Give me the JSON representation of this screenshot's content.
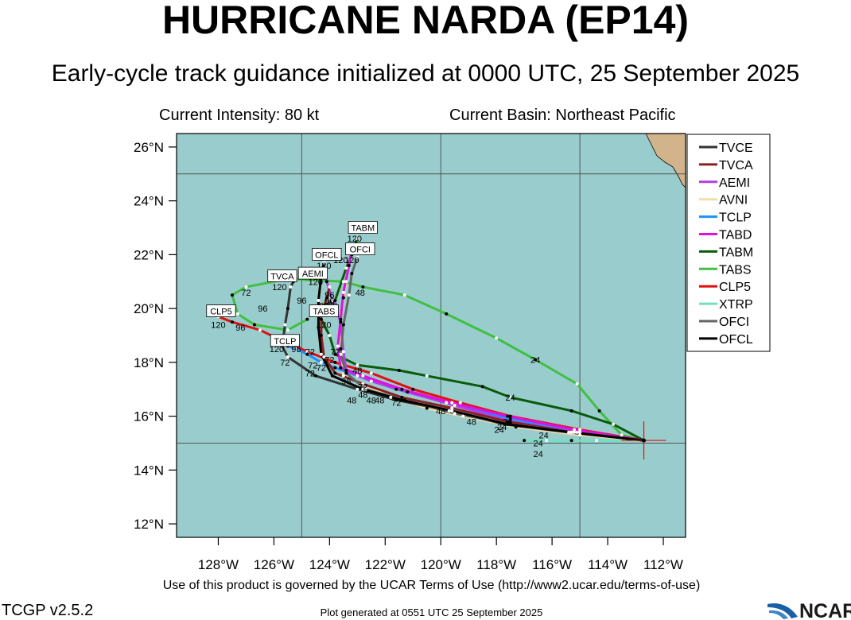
{
  "header": {
    "title": "HURRICANE NARDA (EP14)",
    "subtitle": "Early-cycle track guidance initialized at 0000 UTC, 25 September 2025",
    "current_intensity": "Current Intensity: 80 kt",
    "current_basin": "Current Basin: Northeast Pacific"
  },
  "footer": {
    "terms": "Use of this product is governed by the UCAR Terms of Use (http://www2.ucar.edu/terms-of-use)",
    "version": "TCGP v2.5.2",
    "generated": "Plot generated at 0551 UTC   25 September 2025",
    "logo_text": "NCAR"
  },
  "map": {
    "lon_range": [
      -129.5,
      -111.2
    ],
    "lat_range": [
      11.5,
      26.5
    ],
    "lon_ticks": [
      -128,
      -126,
      -124,
      -122,
      -120,
      -118,
      -116,
      -114,
      -112
    ],
    "lon_tick_labels": [
      "128°W",
      "126°W",
      "124°W",
      "122°W",
      "120°W",
      "118°W",
      "116°W",
      "114°W",
      "112°W"
    ],
    "lat_ticks": [
      12,
      14,
      16,
      18,
      20,
      22,
      24,
      26
    ],
    "lat_tick_labels": [
      "12°N",
      "14°N",
      "16°N",
      "18°N",
      "20°N",
      "22°N",
      "24°N",
      "26°N"
    ],
    "grid_lons": [
      -125,
      -120,
      -115
    ],
    "grid_lats": [
      15,
      25
    ],
    "ocean_color": "#99cccc",
    "land_color": "#d2b48c",
    "storm_position": [
      -112.7,
      15.1
    ]
  },
  "legend": [
    {
      "name": "TVCE",
      "color": "#333333"
    },
    {
      "name": "TVCA",
      "color": "#8b2020"
    },
    {
      "name": "AEMI",
      "color": "#b040e0"
    },
    {
      "name": "AVNI",
      "color": "#f5dcaa"
    },
    {
      "name": "TCLP",
      "color": "#1e90ff"
    },
    {
      "name": "TABD",
      "color": "#e010e0"
    },
    {
      "name": "TABM",
      "color": "#0a5a0a"
    },
    {
      "name": "TABS",
      "color": "#40c040"
    },
    {
      "name": "CLP5",
      "color": "#e01010"
    },
    {
      "name": "XTRP",
      "color": "#70e0c0"
    },
    {
      "name": "OFCI",
      "color": "#666666"
    },
    {
      "name": "OFCL",
      "color": "#000000"
    }
  ],
  "tracks": [
    {
      "name": "TABS",
      "color": "#40c040",
      "points": [
        [
          -112.7,
          15.1
        ],
        [
          -113.5,
          15.3
        ],
        [
          -114.3,
          16.2
        ],
        [
          -115.1,
          17.2
        ],
        [
          -116.6,
          18.1
        ],
        [
          -118.0,
          18.9
        ],
        [
          -119.8,
          19.8
        ],
        [
          -121.3,
          20.5
        ],
        [
          -122.8,
          20.8
        ],
        [
          -123.5,
          21.0
        ],
        [
          -125.5,
          21.1
        ],
        [
          -127.0,
          20.8
        ],
        [
          -127.5,
          20.5
        ],
        [
          -127.3,
          19.8
        ],
        [
          -126.7,
          19.4
        ],
        [
          -125.5,
          19.2
        ],
        [
          -124.8,
          19.6
        ]
      ]
    },
    {
      "name": "TABM",
      "color": "#0a5a0a",
      "points": [
        [
          -112.7,
          15.1
        ],
        [
          -113.8,
          15.7
        ],
        [
          -115.3,
          16.2
        ],
        [
          -117.5,
          16.7
        ],
        [
          -118.5,
          17.1
        ],
        [
          -120.5,
          17.5
        ],
        [
          -121.5,
          17.7
        ],
        [
          -123.0,
          17.9
        ],
        [
          -123.8,
          18.3
        ],
        [
          -124.0,
          19.0
        ],
        [
          -124.3,
          19.6
        ],
        [
          -124.5,
          20.0
        ],
        [
          -123.8,
          20.3
        ],
        [
          -123.4,
          21.5
        ],
        [
          -123.2,
          22.0
        ],
        [
          -123.0,
          22.6
        ]
      ]
    },
    {
      "name": "CLP5",
      "color": "#e01010",
      "points": [
        [
          -112.7,
          15.1
        ],
        [
          -115.0,
          15.5
        ],
        [
          -117.5,
          16.0
        ],
        [
          -119.3,
          16.5
        ],
        [
          -121.0,
          17.0
        ],
        [
          -122.5,
          17.6
        ],
        [
          -123.8,
          18.0
        ],
        [
          -124.8,
          18.4
        ],
        [
          -125.9,
          18.9
        ],
        [
          -126.5,
          19.2
        ],
        [
          -127.5,
          19.5
        ],
        [
          -128.0,
          19.7
        ]
      ]
    },
    {
      "name": "XTRP",
      "color": "#70e0c0",
      "points": [
        [
          -112.7,
          15.1
        ],
        [
          -114.4,
          15.1
        ],
        [
          -115.3,
          15.1
        ],
        [
          -116.2,
          15.1
        ],
        [
          -117.0,
          15.1
        ]
      ]
    },
    {
      "name": "AVNI",
      "color": "#f5dcaa",
      "points": [
        [
          -112.7,
          15.1
        ],
        [
          -115.0,
          15.3
        ],
        [
          -117.3,
          15.6
        ],
        [
          -119.2,
          16.0
        ],
        [
          -120.5,
          16.3
        ],
        [
          -121.8,
          16.7
        ],
        [
          -122.8,
          17.2
        ],
        [
          -123.5,
          17.5
        ],
        [
          -123.6,
          18.5
        ],
        [
          -123.6,
          19.6
        ],
        [
          -123.5,
          20.4
        ],
        [
          -123.4,
          21.0
        ]
      ]
    },
    {
      "name": "TCLP",
      "color": "#1e90ff",
      "points": [
        [
          -112.7,
          15.1
        ],
        [
          -115.0,
          15.4
        ],
        [
          -117.5,
          15.9
        ],
        [
          -119.8,
          16.5
        ],
        [
          -121.6,
          17.0
        ],
        [
          -123.0,
          17.5
        ],
        [
          -123.8,
          17.8
        ],
        [
          -124.3,
          18.0
        ],
        [
          -124.8,
          18.3
        ],
        [
          -125.2,
          18.5
        ],
        [
          -125.5,
          18.6
        ]
      ]
    },
    {
      "name": "AEMI",
      "color": "#b040e0",
      "points": [
        [
          -112.7,
          15.1
        ],
        [
          -115.1,
          15.4
        ],
        [
          -117.5,
          15.8
        ],
        [
          -119.5,
          16.4
        ],
        [
          -121.2,
          16.9
        ],
        [
          -122.5,
          17.3
        ],
        [
          -123.4,
          17.7
        ],
        [
          -123.5,
          18.4
        ],
        [
          -123.6,
          19.5
        ],
        [
          -123.9,
          20.3
        ],
        [
          -124.1,
          21.0
        ],
        [
          -124.3,
          21.4
        ]
      ]
    },
    {
      "name": "TABD",
      "color": "#e010e0",
      "points": [
        [
          -112.7,
          15.1
        ],
        [
          -115.2,
          15.5
        ],
        [
          -117.6,
          16.0
        ],
        [
          -119.6,
          16.5
        ],
        [
          -121.4,
          17.0
        ],
        [
          -122.8,
          17.5
        ],
        [
          -123.6,
          17.8
        ],
        [
          -123.7,
          18.6
        ],
        [
          -123.6,
          19.6
        ],
        [
          -123.5,
          20.6
        ],
        [
          -123.3,
          21.6
        ],
        [
          -123.2,
          22.2
        ]
      ]
    },
    {
      "name": "TVCE",
      "color": "#333333",
      "points": [
        [
          -112.7,
          15.1
        ],
        [
          -115.4,
          15.4
        ],
        [
          -117.7,
          15.7
        ],
        [
          -119.7,
          16.2
        ],
        [
          -121.6,
          16.6
        ],
        [
          -123.0,
          17.0
        ],
        [
          -124.5,
          17.5
        ],
        [
          -125.5,
          18.2
        ],
        [
          -125.7,
          18.6
        ],
        [
          -125.6,
          19.4
        ],
        [
          -125.5,
          20.0
        ],
        [
          -125.4,
          20.8
        ],
        [
          -125.3,
          21.0
        ]
      ]
    },
    {
      "name": "TVCA",
      "color": "#8b2020",
      "points": [
        [
          -112.7,
          15.1
        ],
        [
          -115.3,
          15.4
        ],
        [
          -117.6,
          15.8
        ],
        [
          -119.6,
          16.3
        ],
        [
          -121.4,
          16.7
        ],
        [
          -122.8,
          17.2
        ],
        [
          -123.8,
          17.6
        ],
        [
          -124.2,
          18.2
        ],
        [
          -124.3,
          19.0
        ],
        [
          -124.3,
          19.8
        ],
        [
          -124.1,
          20.4
        ],
        [
          -124.0,
          20.8
        ]
      ]
    },
    {
      "name": "OFCI",
      "color": "#666666",
      "points": [
        [
          -112.7,
          15.1
        ],
        [
          -115.2,
          15.4
        ],
        [
          -117.5,
          15.7
        ],
        [
          -119.5,
          16.1
        ],
        [
          -121.3,
          16.6
        ],
        [
          -122.7,
          17.0
        ],
        [
          -123.4,
          17.6
        ],
        [
          -123.6,
          18.3
        ],
        [
          -123.5,
          19.4
        ],
        [
          -123.3,
          20.5
        ],
        [
          -123.2,
          21.3
        ],
        [
          -123.0,
          21.9
        ]
      ]
    },
    {
      "name": "OFCL",
      "color": "#000000",
      "points": [
        [
          -112.7,
          15.1
        ],
        [
          -115.3,
          15.4
        ],
        [
          -117.6,
          15.7
        ],
        [
          -119.6,
          16.2
        ],
        [
          -121.4,
          16.6
        ],
        [
          -122.8,
          17.0
        ],
        [
          -123.9,
          17.5
        ],
        [
          -124.3,
          18.3
        ],
        [
          -124.4,
          19.3
        ],
        [
          -124.4,
          20.3
        ],
        [
          -124.3,
          21.2
        ],
        [
          -124.2,
          21.7
        ]
      ]
    }
  ],
  "point_labels": [
    {
      "text": "24",
      "lon": -116.6,
      "lat": 18.1
    },
    {
      "text": "24",
      "lon": -117.5,
      "lat": 16.7
    },
    {
      "text": "24",
      "lon": -117.6,
      "lat": 15.8
    },
    {
      "text": "24",
      "lon": -117.8,
      "lat": 15.6
    },
    {
      "text": "24",
      "lon": -117.9,
      "lat": 15.5
    },
    {
      "text": "24",
      "lon": -116.3,
      "lat": 15.3
    },
    {
      "text": "24",
      "lon": -116.5,
      "lat": 15.0
    },
    {
      "text": "24",
      "lon": -116.5,
      "lat": 14.6
    },
    {
      "text": "48",
      "lon": -118.9,
      "lat": 15.8
    },
    {
      "text": "48",
      "lon": -120.0,
      "lat": 16.2
    },
    {
      "text": "48",
      "lon": -122.9,
      "lat": 20.6
    },
    {
      "text": "48",
      "lon": -123.0,
      "lat": 17.7
    },
    {
      "text": "48",
      "lon": -122.8,
      "lat": 16.8
    },
    {
      "text": "48",
      "lon": -123.2,
      "lat": 16.6
    },
    {
      "text": "48",
      "lon": -122.5,
      "lat": 16.6
    },
    {
      "text": "48",
      "lon": -122.2,
      "lat": 16.6
    },
    {
      "text": "72",
      "lon": -121.6,
      "lat": 16.5
    },
    {
      "text": "72",
      "lon": -122.8,
      "lat": 17.1
    },
    {
      "text": "72",
      "lon": -123.8,
      "lat": 18.4
    },
    {
      "text": "72",
      "lon": -124.0,
      "lat": 18.1
    },
    {
      "text": "72",
      "lon": -124.3,
      "lat": 17.8
    },
    {
      "text": "72",
      "lon": -124.6,
      "lat": 17.9
    },
    {
      "text": "72",
      "lon": -124.7,
      "lat": 17.6
    },
    {
      "text": "72",
      "lon": -125.6,
      "lat": 18.0
    },
    {
      "text": "72",
      "lon": -124.7,
      "lat": 18.4
    },
    {
      "text": "72",
      "lon": -127.0,
      "lat": 20.6
    },
    {
      "text": "96",
      "lon": -123.4,
      "lat": 17.3
    },
    {
      "text": "96",
      "lon": -126.4,
      "lat": 20.0
    },
    {
      "text": "96",
      "lon": -127.2,
      "lat": 19.3
    },
    {
      "text": "96",
      "lon": -125.0,
      "lat": 20.3
    },
    {
      "text": "96",
      "lon": -124.0,
      "lat": 20.3
    },
    {
      "text": "96",
      "lon": -124.2,
      "lat": 20.1
    },
    {
      "text": "96",
      "lon": -123.9,
      "lat": 20.2
    },
    {
      "text": "96",
      "lon": -124.0,
      "lat": 20.5
    },
    {
      "text": "96",
      "lon": -125.2,
      "lat": 18.5
    },
    {
      "text": "120",
      "lon": -124.5,
      "lat": 21.0
    },
    {
      "text": "120",
      "lon": -125.8,
      "lat": 20.8
    },
    {
      "text": "120",
      "lon": -124.2,
      "lat": 21.6
    },
    {
      "text": "120",
      "lon": -123.6,
      "lat": 21.8
    },
    {
      "text": "120",
      "lon": -123.2,
      "lat": 21.8
    },
    {
      "text": "120",
      "lon": -123.1,
      "lat": 22.6
    },
    {
      "text": "120",
      "lon": -124.2,
      "lat": 19.4
    },
    {
      "text": "120",
      "lon": -125.9,
      "lat": 18.5
    },
    {
      "text": "120",
      "lon": -128.0,
      "lat": 19.4
    }
  ],
  "model_labels": [
    {
      "text": "TABM",
      "lon": -122.8,
      "lat": 23.0
    },
    {
      "text": "OFCI",
      "lon": -122.9,
      "lat": 22.2
    },
    {
      "text": "OFCL",
      "lon": -124.1,
      "lat": 22.0
    },
    {
      "text": "AEMI",
      "lon": -124.6,
      "lat": 21.3
    },
    {
      "text": "TVCA",
      "lon": -125.7,
      "lat": 21.2
    },
    {
      "text": "CLP5",
      "lon": -127.9,
      "lat": 19.9
    },
    {
      "text": "TABS",
      "lon": -124.2,
      "lat": 19.9
    },
    {
      "text": "TCLP",
      "lon": -125.6,
      "lat": 18.8
    }
  ]
}
